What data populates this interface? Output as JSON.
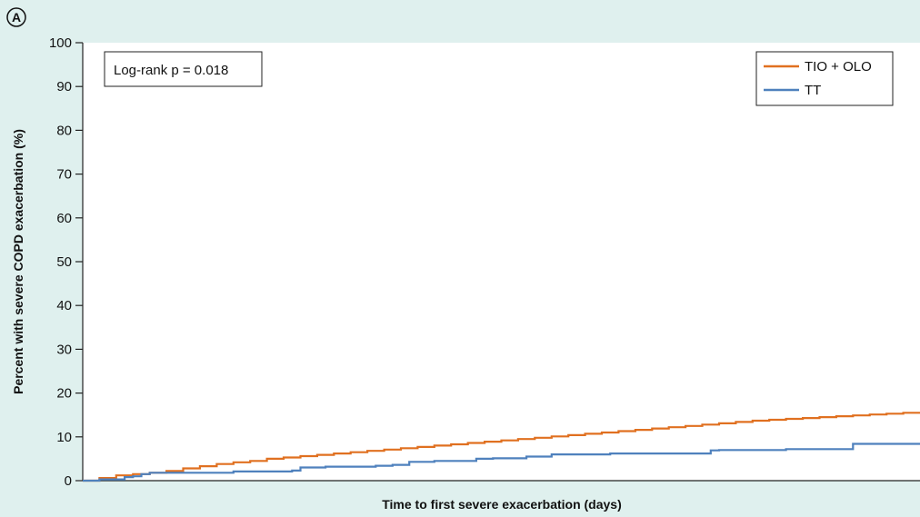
{
  "panel_label": "A",
  "annotation": "Log-rank p = 0.018",
  "colors": {
    "page_background": "#dff0ee",
    "plot_background": "#ffffff",
    "tio_olo": "#e07020",
    "tt": "#4f81bd",
    "axis": "#222222"
  },
  "chart_data": {
    "type": "line",
    "step": true,
    "xlabel": "Time to first severe exacerbation (days)",
    "ylabel": "Percent with severe COPD exacerbation (%)",
    "ylim": [
      0,
      100
    ],
    "yticks": [
      0,
      10,
      20,
      30,
      40,
      50,
      60,
      70,
      80,
      90,
      100
    ],
    "xlim": [
      0,
      1
    ],
    "x_tick_labels_shown": false,
    "grid": false,
    "legend_position": "top-right",
    "series": [
      {
        "name": "TIO + OLO",
        "color": "#e07020",
        "x": [
          0,
          0.02,
          0.04,
          0.06,
          0.08,
          0.1,
          0.12,
          0.14,
          0.16,
          0.18,
          0.2,
          0.22,
          0.24,
          0.26,
          0.28,
          0.3,
          0.32,
          0.34,
          0.36,
          0.38,
          0.4,
          0.42,
          0.44,
          0.46,
          0.48,
          0.5,
          0.52,
          0.54,
          0.56,
          0.58,
          0.6,
          0.62,
          0.64,
          0.66,
          0.68,
          0.7,
          0.72,
          0.74,
          0.76,
          0.78,
          0.8,
          0.82,
          0.84,
          0.86,
          0.88,
          0.9,
          0.92,
          0.94,
          0.96,
          0.98,
          1.0
        ],
        "y": [
          0,
          0.6,
          1.2,
          1.5,
          1.8,
          2.2,
          2.8,
          3.3,
          3.8,
          4.2,
          4.5,
          5.0,
          5.3,
          5.6,
          5.9,
          6.2,
          6.5,
          6.8,
          7.1,
          7.4,
          7.7,
          8.0,
          8.3,
          8.6,
          8.9,
          9.2,
          9.5,
          9.8,
          10.1,
          10.4,
          10.7,
          11.0,
          11.3,
          11.6,
          11.9,
          12.2,
          12.5,
          12.8,
          13.1,
          13.4,
          13.7,
          13.9,
          14.1,
          14.3,
          14.5,
          14.7,
          14.9,
          15.1,
          15.3,
          15.5,
          15.7
        ]
      },
      {
        "name": "TT",
        "color": "#4f81bd",
        "x": [
          0,
          0.02,
          0.05,
          0.06,
          0.07,
          0.08,
          0.18,
          0.25,
          0.26,
          0.29,
          0.35,
          0.37,
          0.39,
          0.42,
          0.47,
          0.49,
          0.53,
          0.56,
          0.63,
          0.75,
          0.76,
          0.84,
          0.92,
          1.0
        ],
        "y": [
          0,
          0.3,
          0.8,
          1.0,
          1.5,
          1.8,
          2.1,
          2.3,
          3.0,
          3.2,
          3.4,
          3.6,
          4.3,
          4.5,
          5.0,
          5.1,
          5.5,
          6.0,
          6.2,
          6.9,
          7.0,
          7.2,
          8.4,
          8.3
        ]
      }
    ]
  }
}
